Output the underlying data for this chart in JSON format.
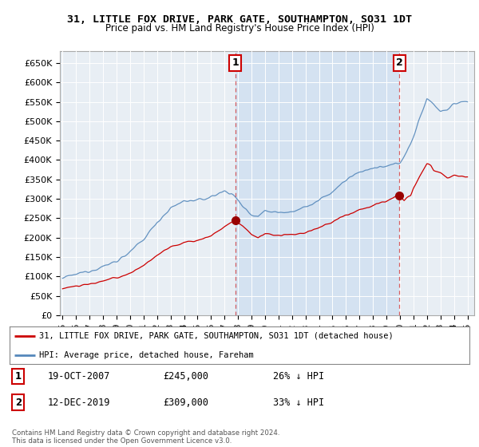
{
  "title": "31, LITTLE FOX DRIVE, PARK GATE, SOUTHAMPTON, SO31 1DT",
  "subtitle": "Price paid vs. HM Land Registry's House Price Index (HPI)",
  "ylabel_ticks": [
    "£0",
    "£50K",
    "£100K",
    "£150K",
    "£200K",
    "£250K",
    "£300K",
    "£350K",
    "£400K",
    "£450K",
    "£500K",
    "£550K",
    "£600K",
    "£650K"
  ],
  "ylim": [
    0,
    680000
  ],
  "ytick_values": [
    0,
    50000,
    100000,
    150000,
    200000,
    250000,
    300000,
    350000,
    400000,
    450000,
    500000,
    550000,
    600000,
    650000
  ],
  "sale1_date": 2007.8,
  "sale1_price": 245000,
  "sale1_label": "1",
  "sale2_date": 2019.95,
  "sale2_price": 309000,
  "sale2_label": "2",
  "line_color_property": "#cc0000",
  "line_color_hpi": "#5588bb",
  "shade_color": "#ccddf0",
  "legend_line1": "31, LITTLE FOX DRIVE, PARK GATE, SOUTHAMPTON, SO31 1DT (detached house)",
  "legend_line2": "HPI: Average price, detached house, Fareham",
  "annotation1_date": "19-OCT-2007",
  "annotation1_price": "£245,000",
  "annotation1_hpi": "26% ↓ HPI",
  "annotation2_date": "12-DEC-2019",
  "annotation2_price": "£309,000",
  "annotation2_hpi": "33% ↓ HPI",
  "footer": "Contains HM Land Registry data © Crown copyright and database right 2024.\nThis data is licensed under the Open Government Licence v3.0.",
  "plot_bg_color": "#f0f4f8",
  "fig_bg_color": "#ffffff"
}
